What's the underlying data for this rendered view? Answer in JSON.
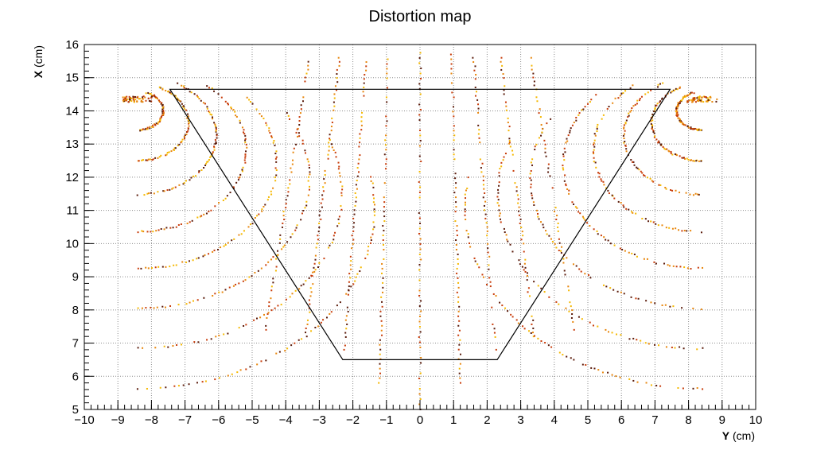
{
  "chart_data": {
    "type": "scatter",
    "title": "Distortion map",
    "xlabel": {
      "bold": "Y",
      "rest": " (cm)"
    },
    "ylabel": {
      "bold": "X",
      "rest": " (cm)"
    },
    "xlim": [
      -10,
      10
    ],
    "ylim": [
      5,
      16
    ],
    "xticks": [
      -10,
      -9,
      -8,
      -7,
      -6,
      -5,
      -4,
      -3,
      -2,
      -1,
      0,
      1,
      2,
      3,
      4,
      5,
      6,
      7,
      8,
      9,
      10
    ],
    "xtick_labels": [
      "−10",
      "−9",
      "−8",
      "−7",
      "−6",
      "−5",
      "−4",
      "−3",
      "−2",
      "−1",
      "0",
      "1",
      "2",
      "3",
      "4",
      "5",
      "6",
      "7",
      "8",
      "9",
      "10"
    ],
    "yticks": [
      5,
      6,
      7,
      8,
      9,
      10,
      11,
      12,
      13,
      14,
      15,
      16
    ],
    "grid": true,
    "outline": {
      "type": "polygon",
      "color": "#000000",
      "points": [
        [
          -7.45,
          14.65
        ],
        [
          7.45,
          14.65
        ],
        [
          2.3,
          6.5
        ],
        [
          -2.3,
          6.5
        ]
      ]
    },
    "field_lines": {
      "description_free": true,
      "colors": [
        "#f5b800",
        "#e8860c",
        "#c83c0a",
        "#5a1a0a"
      ],
      "center_lines": [
        {
          "x0": -2.25,
          "x1": -1.6,
          "y0": 6.8,
          "y1": 15.6
        },
        {
          "x0": -1.2,
          "x1": -0.95,
          "y0": 5.8,
          "y1": 15.7
        },
        {
          "x0": 0.0,
          "x1": 0.0,
          "y0": 5.0,
          "y1": 15.75
        },
        {
          "x0": 1.2,
          "x1": 0.95,
          "y0": 5.8,
          "y1": 15.7
        },
        {
          "x0": 2.25,
          "x1": 1.6,
          "y0": 6.8,
          "y1": 15.6
        },
        {
          "x0": -3.4,
          "x1": -2.4,
          "y0": 7.2,
          "y1": 15.6
        },
        {
          "x0": 3.4,
          "x1": 2.4,
          "y0": 7.2,
          "y1": 15.6
        },
        {
          "x0": -4.6,
          "x1": -3.3,
          "y0": 7.4,
          "y1": 15.6
        },
        {
          "x0": 4.6,
          "x1": 3.3,
          "y0": 7.4,
          "y1": 15.6
        }
      ],
      "side_arcs": [
        {
          "cx": -8.4,
          "cy": 14.35,
          "r0": 1.0,
          "span": 120
        },
        {
          "cx": -8.4,
          "cy": 14.35,
          "r0": 2.0,
          "span": 115
        },
        {
          "cx": -8.4,
          "cy": 14.35,
          "r0": 3.1,
          "span": 110
        },
        {
          "cx": -8.4,
          "cy": 14.35,
          "r0": 4.3,
          "span": 100
        },
        {
          "cx": -8.4,
          "cy": 14.35,
          "r0": 5.5,
          "span": 90
        },
        {
          "cx": -8.4,
          "cy": 14.35,
          "r0": 6.8,
          "span": 80
        },
        {
          "cx": -8.4,
          "cy": 14.35,
          "r0": 8.1,
          "span": 70
        },
        {
          "cx": -8.4,
          "cy": 14.35,
          "r0": 9.4,
          "span": 60
        },
        {
          "cx": 8.4,
          "cy": 14.35,
          "r0": 1.0,
          "span": 120
        },
        {
          "cx": 8.4,
          "cy": 14.35,
          "r0": 2.0,
          "span": 115
        },
        {
          "cx": 8.4,
          "cy": 14.35,
          "r0": 3.1,
          "span": 110
        },
        {
          "cx": 8.4,
          "cy": 14.35,
          "r0": 4.3,
          "span": 100
        },
        {
          "cx": 8.4,
          "cy": 14.35,
          "r0": 5.5,
          "span": 90
        },
        {
          "cx": 8.4,
          "cy": 14.35,
          "r0": 6.8,
          "span": 80
        },
        {
          "cx": 8.4,
          "cy": 14.35,
          "r0": 8.1,
          "span": 70
        },
        {
          "cx": 8.4,
          "cy": 14.35,
          "r0": 9.4,
          "span": 60
        }
      ]
    }
  }
}
